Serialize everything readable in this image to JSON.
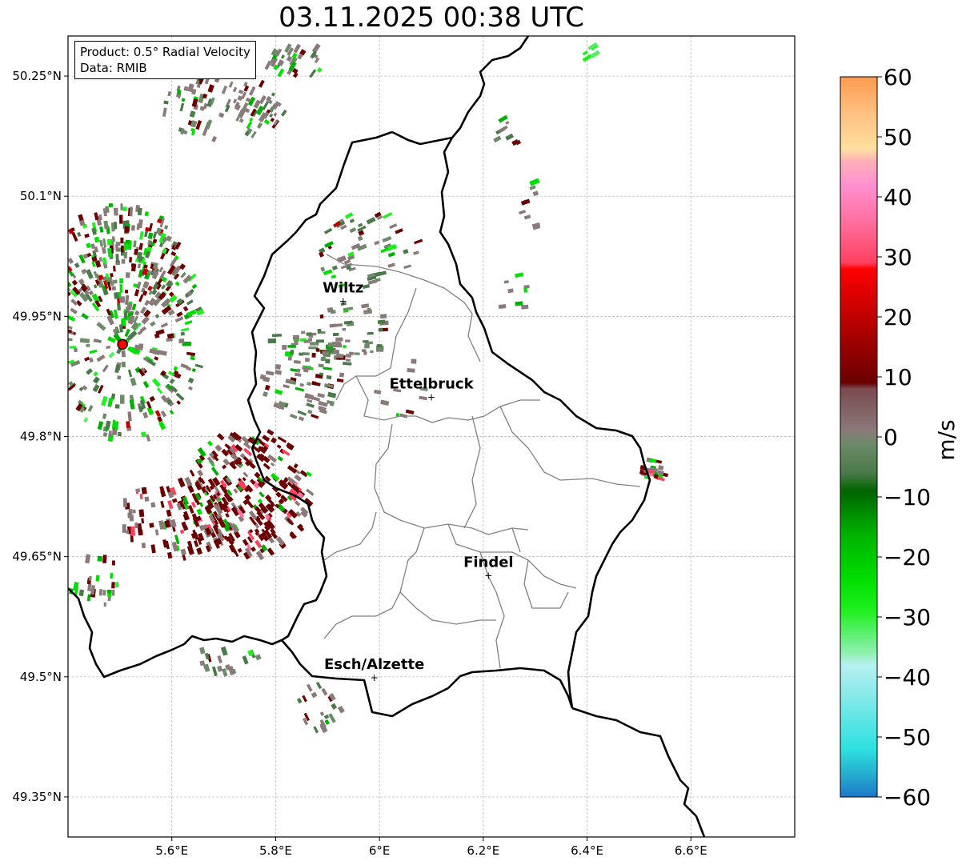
{
  "title": "03.11.2025 00:38 UTC",
  "info": {
    "product_line": "Product: 0.5° Radial Velocity",
    "data_line": "Data: RMIB"
  },
  "axes": {
    "lon_range": [
      5.4,
      6.8
    ],
    "lat_range": [
      49.3,
      50.3
    ],
    "lon_ticks": [
      {
        "value": 5.6,
        "label": "5.6°E"
      },
      {
        "value": 5.8,
        "label": "5.8°E"
      },
      {
        "value": 6.0,
        "label": "6°E"
      },
      {
        "value": 6.2,
        "label": "6.2°E"
      },
      {
        "value": 6.4,
        "label": "6.4°E"
      },
      {
        "value": 6.6,
        "label": "6.6°E"
      }
    ],
    "lat_ticks": [
      {
        "value": 50.25,
        "label": "50.25°N"
      },
      {
        "value": 50.1,
        "label": "50.1°N"
      },
      {
        "value": 49.95,
        "label": "49.95°N"
      },
      {
        "value": 49.8,
        "label": "49.8°N"
      },
      {
        "value": 49.65,
        "label": "49.65°N"
      },
      {
        "value": 49.5,
        "label": "49.5°N"
      },
      {
        "value": 49.35,
        "label": "49.35°N"
      }
    ],
    "grid": true
  },
  "radar_site": {
    "lon": 5.505,
    "lat": 49.915,
    "color": "#ff0000"
  },
  "cities": [
    {
      "name": "Wiltz",
      "lon": 5.93,
      "lat": 49.97
    },
    {
      "name": "Ettelbruck",
      "lon": 6.1,
      "lat": 49.85
    },
    {
      "name": "Findel",
      "lon": 6.21,
      "lat": 49.627
    },
    {
      "name": "Esch/Alzette",
      "lon": 5.99,
      "lat": 49.5
    }
  ],
  "colorbar": {
    "label": "m/s",
    "min": -60,
    "max": 60,
    "ticks": [
      {
        "value": 60,
        "label": "60"
      },
      {
        "value": 50,
        "label": "50"
      },
      {
        "value": 40,
        "label": "40"
      },
      {
        "value": 30,
        "label": "30"
      },
      {
        "value": 20,
        "label": "20"
      },
      {
        "value": 10,
        "label": "10"
      },
      {
        "value": 0,
        "label": "0"
      },
      {
        "value": -10,
        "label": "−10"
      },
      {
        "value": -20,
        "label": "−20"
      },
      {
        "value": -30,
        "label": "−30"
      },
      {
        "value": -40,
        "label": "−40"
      },
      {
        "value": -50,
        "label": "−50"
      },
      {
        "value": -60,
        "label": "−60"
      }
    ],
    "stops": [
      {
        "v": -60,
        "c": "#1f78c8"
      },
      {
        "v": -56,
        "c": "#25b0d0"
      },
      {
        "v": -52,
        "c": "#2ee0e0"
      },
      {
        "v": -44,
        "c": "#7ee8e8"
      },
      {
        "v": -38,
        "c": "#b8f0f0"
      },
      {
        "v": -36,
        "c": "#90f0b0"
      },
      {
        "v": -32,
        "c": "#50f060"
      },
      {
        "v": -29,
        "c": "#20f020"
      },
      {
        "v": -24,
        "c": "#00e000"
      },
      {
        "v": -16,
        "c": "#00b000"
      },
      {
        "v": -9,
        "c": "#006400"
      },
      {
        "v": -6,
        "c": "#4a7a4a"
      },
      {
        "v": -1,
        "c": "#6e8a6a"
      },
      {
        "v": 1,
        "c": "#8a7a7a"
      },
      {
        "v": 8,
        "c": "#7a4a50"
      },
      {
        "v": 9,
        "c": "#6a0000"
      },
      {
        "v": 20,
        "c": "#c00000"
      },
      {
        "v": 28,
        "c": "#ff0000"
      },
      {
        "v": 29,
        "c": "#ff4060"
      },
      {
        "v": 36,
        "c": "#ff70a0"
      },
      {
        "v": 42,
        "c": "#ff90d0"
      },
      {
        "v": 46,
        "c": "#ffb0b8"
      },
      {
        "v": 48,
        "c": "#ffe0a0"
      },
      {
        "v": 54,
        "c": "#ffc080"
      },
      {
        "v": 60,
        "c": "#ff9a50"
      }
    ]
  },
  "echo_clusters": [
    {
      "lon": 5.52,
      "lat": 49.93,
      "rlon": 0.14,
      "rlat": 0.14,
      "n": 320,
      "mix": "mixed"
    },
    {
      "lon": 5.5,
      "lat": 50.02,
      "rlon": 0.12,
      "rlat": 0.07,
      "n": 140,
      "mix": "mixed"
    },
    {
      "lon": 5.75,
      "lat": 49.73,
      "rlon": 0.12,
      "rlat": 0.08,
      "n": 260,
      "mix": "red"
    },
    {
      "lon": 5.62,
      "lat": 49.7,
      "rlon": 0.12,
      "rlat": 0.05,
      "n": 120,
      "mix": "red"
    },
    {
      "lon": 5.7,
      "lat": 50.21,
      "rlon": 0.12,
      "rlat": 0.04,
      "n": 100,
      "mix": "grey"
    },
    {
      "lon": 5.84,
      "lat": 50.27,
      "rlon": 0.06,
      "rlat": 0.02,
      "n": 30,
      "mix": "grey"
    },
    {
      "lon": 5.85,
      "lat": 49.88,
      "rlon": 0.08,
      "rlat": 0.06,
      "n": 90,
      "mix": "grey"
    },
    {
      "lon": 5.94,
      "lat": 49.93,
      "rlon": 0.08,
      "rlat": 0.04,
      "n": 50,
      "mix": "grey"
    },
    {
      "lon": 5.98,
      "lat": 50.03,
      "rlon": 0.1,
      "rlat": 0.05,
      "n": 55,
      "mix": "mixed"
    },
    {
      "lon": 5.45,
      "lat": 49.62,
      "rlon": 0.05,
      "rlat": 0.05,
      "n": 25,
      "mix": "grey"
    },
    {
      "lon": 5.88,
      "lat": 49.46,
      "rlon": 0.05,
      "rlat": 0.03,
      "n": 20,
      "mix": "grey"
    },
    {
      "lon": 6.53,
      "lat": 49.76,
      "rlon": 0.025,
      "rlat": 0.015,
      "n": 20,
      "mix": "red"
    },
    {
      "lon": 6.3,
      "lat": 50.09,
      "rlon": 0.03,
      "rlat": 0.03,
      "n": 10,
      "mix": "grey"
    },
    {
      "lon": 6.26,
      "lat": 49.98,
      "rlon": 0.03,
      "rlat": 0.03,
      "n": 8,
      "mix": "grey"
    },
    {
      "lon": 6.25,
      "lat": 50.18,
      "rlon": 0.03,
      "rlat": 0.02,
      "n": 8,
      "mix": "mixed"
    },
    {
      "lon": 6.04,
      "lat": 49.86,
      "rlon": 0.05,
      "rlat": 0.04,
      "n": 10,
      "mix": "grey"
    },
    {
      "lon": 5.7,
      "lat": 49.52,
      "rlon": 0.08,
      "rlat": 0.015,
      "n": 18,
      "mix": "grey"
    },
    {
      "lon": 6.4,
      "lat": 50.28,
      "rlon": 0.02,
      "rlat": 0.01,
      "n": 6,
      "mix": "green"
    }
  ]
}
